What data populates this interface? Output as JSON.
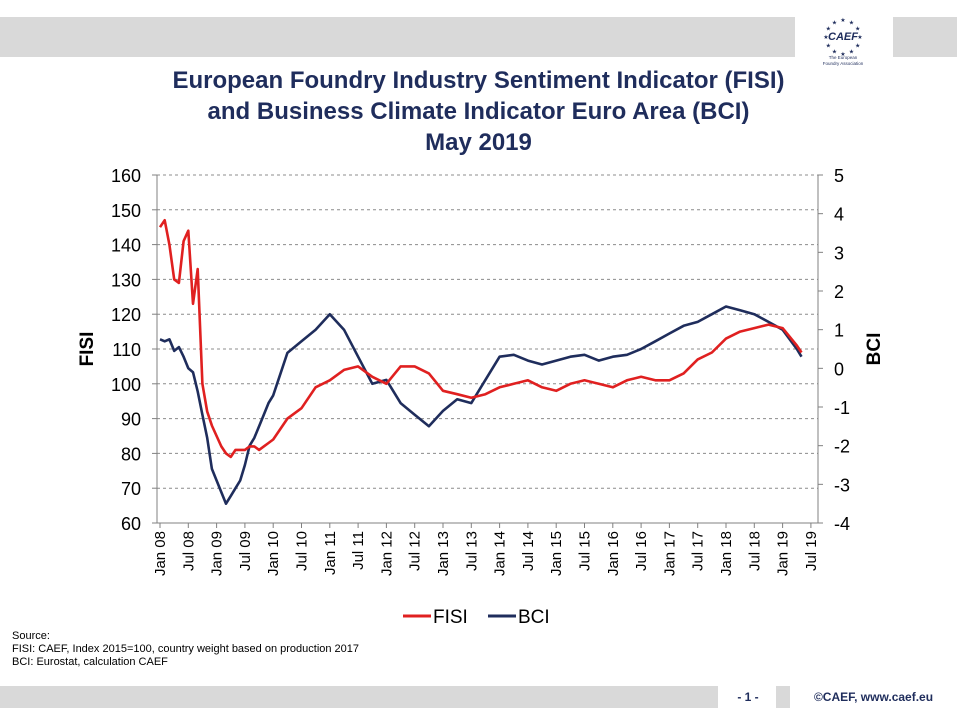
{
  "logo": {
    "name": "CAEF",
    "subtitle_line1": "The European",
    "subtitle_line2": "Foundry Association"
  },
  "title": {
    "line1": "European Foundry Industry Sentiment Indicator (FISI)",
    "line2": "and Business Climate Indicator Euro Area (BCI)",
    "line3": "May 2019"
  },
  "source": {
    "line1": "Source:",
    "line2": "FISI:  CAEF, Index 2015=100, country weight based on production 2017",
    "line3": "BCI: Eurostat, calculation CAEF"
  },
  "footer": {
    "page": "- 1 -",
    "copyright": "©CAEF,  www.caef.eu"
  },
  "colors": {
    "fisi": "#e02020",
    "bci": "#1f2d5c",
    "title": "#1f2d5c",
    "bar": "#d9d9d9"
  },
  "chart_data": {
    "type": "line",
    "title": "",
    "xlabel": "",
    "ylabel": "FISI",
    "y2label": "BCI",
    "ylim": [
      60,
      160
    ],
    "y2lim": [
      -4,
      5
    ],
    "yticks": [
      60,
      70,
      80,
      90,
      100,
      110,
      120,
      130,
      140,
      150,
      160
    ],
    "y2ticks": [
      -4,
      -3,
      -2,
      -1,
      0,
      1,
      2,
      3,
      4,
      5
    ],
    "xticks": [
      "Jan 08",
      "Jul 08",
      "Jan 09",
      "Jul 09",
      "Jan 10",
      "Jul 10",
      "Jan 11",
      "Jul 11",
      "Jan 12",
      "Jul 12",
      "Jan 13",
      "Jul 13",
      "Jan 14",
      "Jul 14",
      "Jan 15",
      "Jul 15",
      "Jan 16",
      "Jul 16",
      "Jan 17",
      "Jul 17",
      "Jan 18",
      "Jul 18",
      "Jan 19",
      "Jul 19"
    ],
    "x_range": [
      "Jan 08",
      "Jul 19"
    ],
    "grid": "horizontal dashed",
    "legend": "bottom",
    "series": [
      {
        "name": "FISI",
        "axis": "left",
        "x": [
          "Jan 08",
          "Feb 08",
          "Mar 08",
          "Apr 08",
          "May 08",
          "Jun 08",
          "Jul 08",
          "Aug 08",
          "Sep 08",
          "Oct 08",
          "Nov 08",
          "Dec 08",
          "Jan 09",
          "Feb 09",
          "Mar 09",
          "Apr 09",
          "May 09",
          "Jun 09",
          "Jul 09",
          "Aug 09",
          "Sep 09",
          "Oct 09",
          "Nov 09",
          "Dec 09",
          "Jan 10",
          "Apr 10",
          "Jul 10",
          "Oct 10",
          "Jan 11",
          "Apr 11",
          "Jul 11",
          "Oct 11",
          "Jan 12",
          "Apr 12",
          "Jul 12",
          "Oct 12",
          "Jan 13",
          "Apr 13",
          "Jul 13",
          "Oct 13",
          "Jan 14",
          "Apr 14",
          "Jul 14",
          "Oct 14",
          "Jan 15",
          "Apr 15",
          "Jul 15",
          "Oct 15",
          "Jan 16",
          "Apr 16",
          "Jul 16",
          "Oct 16",
          "Jan 17",
          "Apr 17",
          "Jul 17",
          "Oct 17",
          "Jan 18",
          "Apr 18",
          "Jul 18",
          "Oct 18",
          "Jan 19",
          "Apr 19",
          "May 19"
        ],
        "values": [
          145,
          147,
          140,
          130,
          129,
          141,
          144,
          123,
          133,
          100,
          92,
          88,
          85,
          82,
          80,
          79,
          81,
          81,
          81,
          82,
          82,
          81,
          82,
          83,
          84,
          90,
          93,
          99,
          101,
          104,
          105,
          102,
          100,
          105,
          105,
          103,
          98,
          97,
          96,
          97,
          99,
          100,
          101,
          99,
          98,
          100,
          101,
          100,
          99,
          101,
          102,
          101,
          101,
          103,
          107,
          109,
          113,
          115,
          116,
          117,
          116,
          111,
          109
        ]
      },
      {
        "name": "BCI",
        "axis": "right",
        "x": [
          "Jan 08",
          "Feb 08",
          "Mar 08",
          "Apr 08",
          "May 08",
          "Jun 08",
          "Jul 08",
          "Aug 08",
          "Sep 08",
          "Oct 08",
          "Nov 08",
          "Dec 08",
          "Jan 09",
          "Feb 09",
          "Mar 09",
          "Apr 09",
          "May 09",
          "Jun 09",
          "Jul 09",
          "Aug 09",
          "Sep 09",
          "Oct 09",
          "Nov 09",
          "Dec 09",
          "Jan 10",
          "Apr 10",
          "Jul 10",
          "Oct 10",
          "Jan 11",
          "Apr 11",
          "Jul 11",
          "Oct 11",
          "Jan 12",
          "Apr 12",
          "Jul 12",
          "Oct 12",
          "Jan 13",
          "Apr 13",
          "Jul 13",
          "Oct 13",
          "Jan 14",
          "Apr 14",
          "Jul 14",
          "Oct 14",
          "Jan 15",
          "Apr 15",
          "Jul 15",
          "Oct 15",
          "Jan 16",
          "Apr 16",
          "Jul 16",
          "Oct 16",
          "Jan 17",
          "Apr 17",
          "Jul 17",
          "Oct 17",
          "Jan 18",
          "Apr 18",
          "Jul 18",
          "Oct 18",
          "Jan 19",
          "Apr 19",
          "May 19"
        ],
        "values": [
          0.75,
          0.7,
          0.75,
          0.45,
          0.55,
          0.3,
          0.0,
          -0.1,
          -0.6,
          -1.2,
          -1.8,
          -2.6,
          -2.9,
          -3.2,
          -3.5,
          -3.3,
          -3.1,
          -2.9,
          -2.5,
          -2.0,
          -1.8,
          -1.5,
          -1.2,
          -0.9,
          -0.7,
          0.4,
          0.7,
          1.0,
          1.4,
          1.0,
          0.3,
          -0.4,
          -0.3,
          -0.9,
          -1.2,
          -1.5,
          -1.1,
          -0.8,
          -0.9,
          -0.3,
          0.3,
          0.35,
          0.2,
          0.1,
          0.2,
          0.3,
          0.35,
          0.2,
          0.3,
          0.35,
          0.5,
          0.7,
          0.9,
          1.1,
          1.2,
          1.4,
          1.6,
          1.5,
          1.4,
          1.2,
          1.0,
          0.5,
          0.3
        ]
      }
    ]
  }
}
